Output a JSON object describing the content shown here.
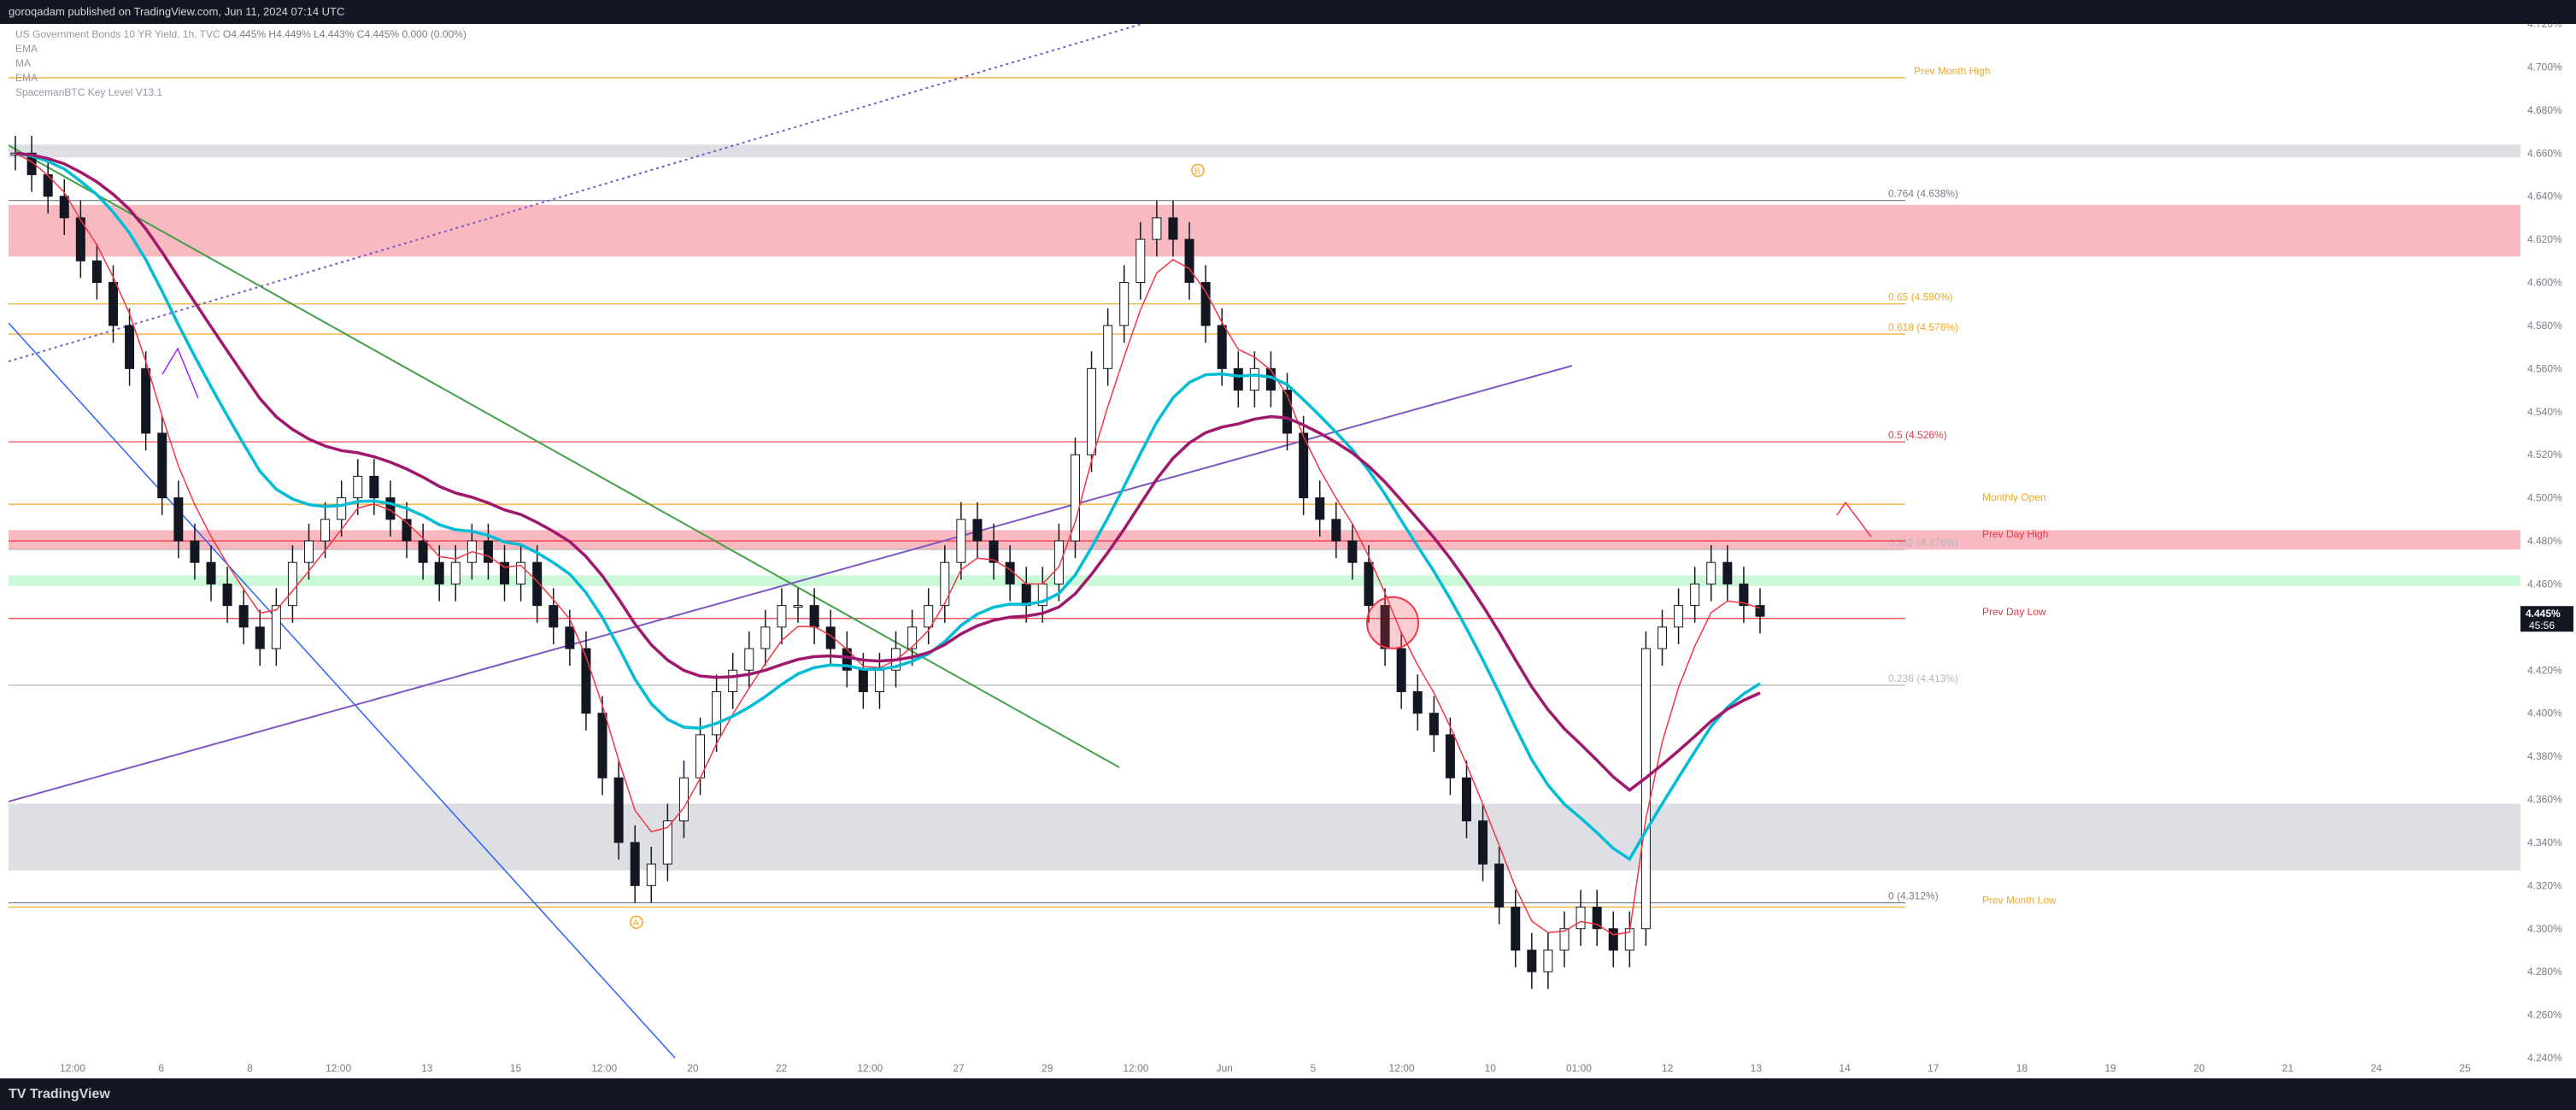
{
  "header": {
    "publish_line": "goroqadam published on TradingView.com, Jun 11, 2024 07:14 UTC"
  },
  "legend": {
    "symbol_line": "US Government Bonds 10 YR Yield, 1h, TVC",
    "ohlc": "O4.445% H4.449% L4.443% C4.445% 0.000 (0.00%)",
    "indicators": [
      "EMA",
      "MA",
      "EMA",
      "SpacemanBTC Key Level V13.1"
    ]
  },
  "footer": {
    "brand": "TradingView"
  },
  "colors": {
    "bull": "#ffffff",
    "bear": "#131722",
    "ema_fast": "#f23645",
    "ma_slow": "#a0186d",
    "ema_mid": "#00bcd4",
    "level_orange": "#f5a623",
    "zone_red": "#f7a1ab",
    "zone_grey": "#d1d4dc",
    "zone_green": "#b9f6ca",
    "purple": "#7e57c2",
    "green_line": "#43a047",
    "blue_line": "#2962ff"
  },
  "chart_data": {
    "type": "candlestick",
    "symbol": "US Government Bonds 10 YR Yield",
    "timeframe": "1h",
    "ylim": [
      4.24,
      4.72
    ],
    "y_ticks": [
      "4.720%",
      "4.700%",
      "4.680%",
      "4.660%",
      "4.640%",
      "4.620%",
      "4.600%",
      "4.580%",
      "4.560%",
      "4.540%",
      "4.520%",
      "4.500%",
      "4.480%",
      "4.460%",
      "4.440%",
      "4.420%",
      "4.400%",
      "4.380%",
      "4.360%",
      "4.340%",
      "4.320%",
      "4.300%",
      "4.280%",
      "4.260%",
      "4.240%"
    ],
    "x_ticks": [
      "12:00",
      "6",
      "8",
      "12:00",
      "13",
      "15",
      "12:00",
      "20",
      "22",
      "12:00",
      "27",
      "29",
      "12:00",
      "Jun",
      "5",
      "12:00",
      "10",
      "01:00",
      "12",
      "13",
      "14",
      "17",
      "18",
      "19",
      "20",
      "21",
      "24",
      "25"
    ],
    "current_price_label": "4.445%",
    "countdown_label": "45:56",
    "horizontal_levels": [
      {
        "label": "Prev Month High",
        "value": 4.695,
        "color": "#f5a623"
      },
      {
        "label": "0.764 (4.638%)",
        "value": 4.638,
        "color": "#787b86"
      },
      {
        "label": "0.65 (4.590%)",
        "value": 4.59,
        "color": "#f5a623"
      },
      {
        "label": "0.618 (4.576%)",
        "value": 4.576,
        "color": "#f5a623"
      },
      {
        "label": "0.5 (4.526%)",
        "value": 4.526,
        "color": "#f23645"
      },
      {
        "label": "Monthly Open",
        "value": 4.497,
        "color": "#f5a623"
      },
      {
        "label": "0.382 (4.476%)",
        "value": 4.476,
        "color": "#b2b5be"
      },
      {
        "label": "Prev Day High",
        "value": 4.48,
        "color": "#f23645"
      },
      {
        "label": "Prev Day Low",
        "value": 4.444,
        "color": "#f23645"
      },
      {
        "label": "0.236 (4.413%)",
        "value": 4.413,
        "color": "#b2b5be"
      },
      {
        "label": "0 (4.312%)",
        "value": 4.312,
        "color": "#787b86"
      },
      {
        "label": "Prev Month Low",
        "value": 4.31,
        "color": "#f5a623"
      }
    ],
    "zones": [
      {
        "from": 4.658,
        "to": 4.664,
        "color": "#d1d4dc"
      },
      {
        "from": 4.612,
        "to": 4.636,
        "color": "#f7a1ab"
      },
      {
        "from": 4.476,
        "to": 4.485,
        "color": "#f7a1ab"
      },
      {
        "from": 4.459,
        "to": 4.464,
        "color": "#b9f6ca"
      },
      {
        "from": 4.327,
        "to": 4.358,
        "color": "#d1d4dc"
      }
    ],
    "markers": [
      {
        "label": "A",
        "value": 4.303
      },
      {
        "label": "B",
        "value": 4.652
      }
    ],
    "closes": [
      4.66,
      4.65,
      4.64,
      4.63,
      4.61,
      4.6,
      4.58,
      4.56,
      4.53,
      4.5,
      4.48,
      4.47,
      4.46,
      4.45,
      4.44,
      4.43,
      4.45,
      4.47,
      4.48,
      4.49,
      4.5,
      4.51,
      4.5,
      4.49,
      4.48,
      4.47,
      4.46,
      4.47,
      4.48,
      4.47,
      4.46,
      4.47,
      4.45,
      4.44,
      4.43,
      4.4,
      4.37,
      4.34,
      4.32,
      4.33,
      4.35,
      4.37,
      4.39,
      4.41,
      4.42,
      4.43,
      4.44,
      4.45,
      4.45,
      4.44,
      4.43,
      4.42,
      4.41,
      4.42,
      4.43,
      4.44,
      4.45,
      4.47,
      4.49,
      4.48,
      4.47,
      4.46,
      4.45,
      4.46,
      4.48,
      4.52,
      4.56,
      4.58,
      4.6,
      4.62,
      4.63,
      4.62,
      4.6,
      4.58,
      4.56,
      4.55,
      4.56,
      4.55,
      4.53,
      4.5,
      4.49,
      4.48,
      4.47,
      4.45,
      4.43,
      4.41,
      4.4,
      4.39,
      4.37,
      4.35,
      4.33,
      4.31,
      4.29,
      4.28,
      4.29,
      4.3,
      4.31,
      4.3,
      4.29,
      4.3,
      4.43,
      4.44,
      4.45,
      4.46,
      4.47,
      4.46,
      4.45,
      4.445
    ]
  }
}
